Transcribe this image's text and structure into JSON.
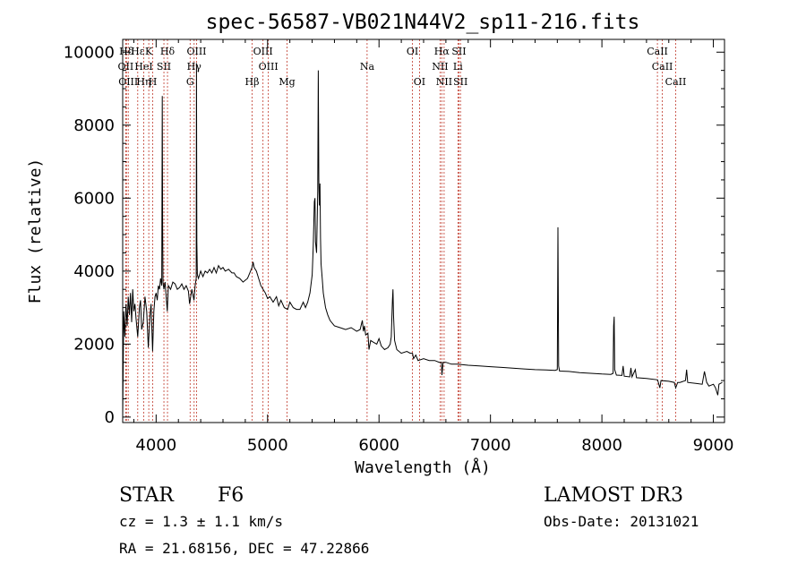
{
  "chart_data": {
    "type": "line",
    "title": "spec-56587-VB021N44V2_sp11-216.fits",
    "xlabel": "Wavelength (Å)",
    "ylabel": "Flux (relative)",
    "xlim": [
      3700,
      9100
    ],
    "ylim": [
      -150,
      10350
    ],
    "xticks": [
      4000,
      5000,
      6000,
      7000,
      8000,
      9000
    ],
    "yticks": [
      0,
      2000,
      4000,
      6000,
      8000,
      10000
    ],
    "series": [
      {
        "name": "spectrum",
        "points": [
          [
            3700,
            0
          ],
          [
            3705,
            1500
          ],
          [
            3710,
            2900
          ],
          [
            3720,
            2200
          ],
          [
            3730,
            3100
          ],
          [
            3740,
            2500
          ],
          [
            3750,
            3300
          ],
          [
            3760,
            2800
          ],
          [
            3770,
            3400
          ],
          [
            3780,
            2600
          ],
          [
            3790,
            3500
          ],
          [
            3800,
            2900
          ],
          [
            3810,
            3100
          ],
          [
            3820,
            2700
          ],
          [
            3835,
            2200
          ],
          [
            3850,
            3000
          ],
          [
            3860,
            3200
          ],
          [
            3870,
            2400
          ],
          [
            3885,
            2600
          ],
          [
            3900,
            3300
          ],
          [
            3915,
            2900
          ],
          [
            3930,
            1900
          ],
          [
            3945,
            2800
          ],
          [
            3955,
            3100
          ],
          [
            3968,
            1800
          ],
          [
            3980,
            2900
          ],
          [
            3990,
            3300
          ],
          [
            4000,
            3400
          ],
          [
            4010,
            3200
          ],
          [
            4020,
            3600
          ],
          [
            4030,
            3500
          ],
          [
            4040,
            3800
          ],
          [
            4050,
            3600
          ],
          [
            4055,
            8800
          ],
          [
            4058,
            5200
          ],
          [
            4062,
            3700
          ],
          [
            4070,
            3500
          ],
          [
            4080,
            3700
          ],
          [
            4100,
            2900
          ],
          [
            4110,
            3600
          ],
          [
            4130,
            3500
          ],
          [
            4150,
            3700
          ],
          [
            4170,
            3650
          ],
          [
            4190,
            3500
          ],
          [
            4210,
            3550
          ],
          [
            4230,
            3650
          ],
          [
            4250,
            3500
          ],
          [
            4270,
            3600
          ],
          [
            4290,
            3450
          ],
          [
            4300,
            3100
          ],
          [
            4320,
            3500
          ],
          [
            4340,
            3200
          ],
          [
            4350,
            3600
          ],
          [
            4360,
            3800
          ],
          [
            4362,
            9700
          ],
          [
            4365,
            4800
          ],
          [
            4370,
            3900
          ],
          [
            4380,
            3800
          ],
          [
            4400,
            4000
          ],
          [
            4420,
            3850
          ],
          [
            4440,
            4000
          ],
          [
            4460,
            3950
          ],
          [
            4480,
            4050
          ],
          [
            4500,
            3950
          ],
          [
            4520,
            4100
          ],
          [
            4540,
            3950
          ],
          [
            4560,
            4150
          ],
          [
            4580,
            4050
          ],
          [
            4600,
            4100
          ],
          [
            4620,
            4000
          ],
          [
            4650,
            4050
          ],
          [
            4680,
            3950
          ],
          [
            4700,
            3950
          ],
          [
            4720,
            3850
          ],
          [
            4750,
            3800
          ],
          [
            4780,
            3700
          ],
          [
            4800,
            3750
          ],
          [
            4820,
            3800
          ],
          [
            4840,
            3950
          ],
          [
            4860,
            4100
          ],
          [
            4870,
            4250
          ],
          [
            4880,
            4100
          ],
          [
            4900,
            4000
          ],
          [
            4920,
            3800
          ],
          [
            4940,
            3600
          ],
          [
            4960,
            3500
          ],
          [
            4980,
            3400
          ],
          [
            5000,
            3250
          ],
          [
            5020,
            3300
          ],
          [
            5050,
            3150
          ],
          [
            5080,
            3300
          ],
          [
            5100,
            3050
          ],
          [
            5120,
            3200
          ],
          [
            5150,
            3000
          ],
          [
            5180,
            2950
          ],
          [
            5200,
            3150
          ],
          [
            5230,
            3000
          ],
          [
            5260,
            2950
          ],
          [
            5290,
            2950
          ],
          [
            5320,
            3150
          ],
          [
            5340,
            3000
          ],
          [
            5360,
            3150
          ],
          [
            5380,
            3400
          ],
          [
            5400,
            3900
          ],
          [
            5410,
            4700
          ],
          [
            5420,
            5900
          ],
          [
            5425,
            6000
          ],
          [
            5430,
            4800
          ],
          [
            5440,
            4500
          ],
          [
            5450,
            6200
          ],
          [
            5455,
            9500
          ],
          [
            5460,
            6500
          ],
          [
            5465,
            5800
          ],
          [
            5470,
            6400
          ],
          [
            5475,
            4900
          ],
          [
            5480,
            4200
          ],
          [
            5490,
            3800
          ],
          [
            5500,
            3400
          ],
          [
            5520,
            3000
          ],
          [
            5540,
            2800
          ],
          [
            5560,
            2650
          ],
          [
            5600,
            2500
          ],
          [
            5650,
            2450
          ],
          [
            5700,
            2400
          ],
          [
            5750,
            2450
          ],
          [
            5800,
            2350
          ],
          [
            5830,
            2400
          ],
          [
            5850,
            2650
          ],
          [
            5860,
            2350
          ],
          [
            5870,
            2500
          ],
          [
            5880,
            2250
          ],
          [
            5900,
            2300
          ],
          [
            5910,
            1850
          ],
          [
            5925,
            2100
          ],
          [
            5950,
            2050
          ],
          [
            5980,
            2000
          ],
          [
            6000,
            2150
          ],
          [
            6020,
            1950
          ],
          [
            6050,
            1850
          ],
          [
            6080,
            1900
          ],
          [
            6100,
            2000
          ],
          [
            6110,
            2200
          ],
          [
            6120,
            3200
          ],
          [
            6125,
            3500
          ],
          [
            6130,
            2800
          ],
          [
            6140,
            2100
          ],
          [
            6160,
            1850
          ],
          [
            6200,
            1750
          ],
          [
            6250,
            1800
          ],
          [
            6280,
            1750
          ],
          [
            6300,
            1750
          ],
          [
            6310,
            1600
          ],
          [
            6330,
            1700
          ],
          [
            6350,
            1550
          ],
          [
            6400,
            1600
          ],
          [
            6450,
            1550
          ],
          [
            6500,
            1550
          ],
          [
            6540,
            1500
          ],
          [
            6560,
            1500
          ],
          [
            6565,
            1150
          ],
          [
            6570,
            1350
          ],
          [
            6575,
            1500
          ],
          [
            6600,
            1500
          ],
          [
            6650,
            1450
          ],
          [
            6700,
            1450
          ],
          [
            6800,
            1420
          ],
          [
            6900,
            1400
          ],
          [
            7000,
            1380
          ],
          [
            7100,
            1360
          ],
          [
            7200,
            1340
          ],
          [
            7300,
            1320
          ],
          [
            7400,
            1300
          ],
          [
            7500,
            1290
          ],
          [
            7580,
            1280
          ],
          [
            7600,
            1300
          ],
          [
            7605,
            5200
          ],
          [
            7612,
            1400
          ],
          [
            7620,
            1260
          ],
          [
            7700,
            1250
          ],
          [
            7800,
            1220
          ],
          [
            7900,
            1200
          ],
          [
            8000,
            1180
          ],
          [
            8080,
            1170
          ],
          [
            8100,
            1200
          ],
          [
            8105,
            2500
          ],
          [
            8110,
            2750
          ],
          [
            8115,
            1300
          ],
          [
            8130,
            1150
          ],
          [
            8180,
            1140
          ],
          [
            8190,
            1400
          ],
          [
            8200,
            1120
          ],
          [
            8250,
            1100
          ],
          [
            8260,
            1350
          ],
          [
            8270,
            1100
          ],
          [
            8300,
            1300
          ],
          [
            8310,
            1080
          ],
          [
            8400,
            1060
          ],
          [
            8500,
            1020
          ],
          [
            8520,
            800
          ],
          [
            8530,
            1000
          ],
          [
            8600,
            980
          ],
          [
            8650,
            950
          ],
          [
            8662,
            800
          ],
          [
            8680,
            950
          ],
          [
            8700,
            950
          ],
          [
            8750,
            1000
          ],
          [
            8760,
            1300
          ],
          [
            8770,
            950
          ],
          [
            8850,
            920
          ],
          [
            8900,
            900
          ],
          [
            8920,
            1250
          ],
          [
            8940,
            950
          ],
          [
            8960,
            850
          ],
          [
            9000,
            900
          ],
          [
            9020,
            800
          ],
          [
            9040,
            600
          ],
          [
            9050,
            900
          ],
          [
            9080,
            950
          ]
        ]
      }
    ],
    "lines": [
      {
        "label": "Hδ",
        "x": 3734,
        "row": 1
      },
      {
        "label": "OII",
        "x": 3727,
        "row": 2
      },
      {
        "label": "OIII",
        "x": 3750,
        "row": 3
      },
      {
        "label": "Hε",
        "x": 3835,
        "row": 1
      },
      {
        "label": "HeI",
        "x": 3889,
        "row": 2
      },
      {
        "label": "Hη",
        "x": 3889,
        "row": 3
      },
      {
        "label": "K",
        "x": 3934,
        "row": 1
      },
      {
        "label": "SII",
        "x": 4070,
        "row": 2
      },
      {
        "label": "H",
        "x": 3970,
        "row": 3
      },
      {
        "label": "Hδ",
        "x": 4102,
        "row": 1
      },
      {
        "label": "OIII",
        "x": 4363,
        "row": 1
      },
      {
        "label": "Hγ",
        "x": 4341,
        "row": 2
      },
      {
        "label": "G",
        "x": 4305,
        "row": 3
      },
      {
        "label": "OIII",
        "x": 4959,
        "row": 1
      },
      {
        "label": "OIII",
        "x": 5007,
        "row": 2
      },
      {
        "label": "Hβ",
        "x": 4861,
        "row": 3
      },
      {
        "label": "Mg",
        "x": 5175,
        "row": 3
      },
      {
        "label": "Na",
        "x": 5893,
        "row": 2
      },
      {
        "label": "OI",
        "x": 6300,
        "row": 1
      },
      {
        "label": "OI",
        "x": 6363,
        "row": 3
      },
      {
        "label": "Hα",
        "x": 6563,
        "row": 1
      },
      {
        "label": "SII",
        "x": 6717,
        "row": 1
      },
      {
        "label": "NII",
        "x": 6548,
        "row": 2
      },
      {
        "label": "Li",
        "x": 6708,
        "row": 2
      },
      {
        "label": "NII",
        "x": 6584,
        "row": 3
      },
      {
        "label": "SII",
        "x": 6731,
        "row": 3
      },
      {
        "label": "CaII",
        "x": 8498,
        "row": 1
      },
      {
        "label": "CaII",
        "x": 8542,
        "row": 2
      },
      {
        "label": "CaII",
        "x": 8662,
        "row": 3
      }
    ]
  },
  "info": {
    "class": "STAR",
    "subclass": "F6",
    "survey": "LAMOST DR3",
    "cz": "cz = 1.3 ± 1.1 km/s",
    "obs_date": "Obs-Date: 20131021",
    "coords": "RA =  21.68156, DEC =  47.22866"
  },
  "colors": {
    "line_marker": "#c0392b",
    "spectrum": "#000000"
  }
}
